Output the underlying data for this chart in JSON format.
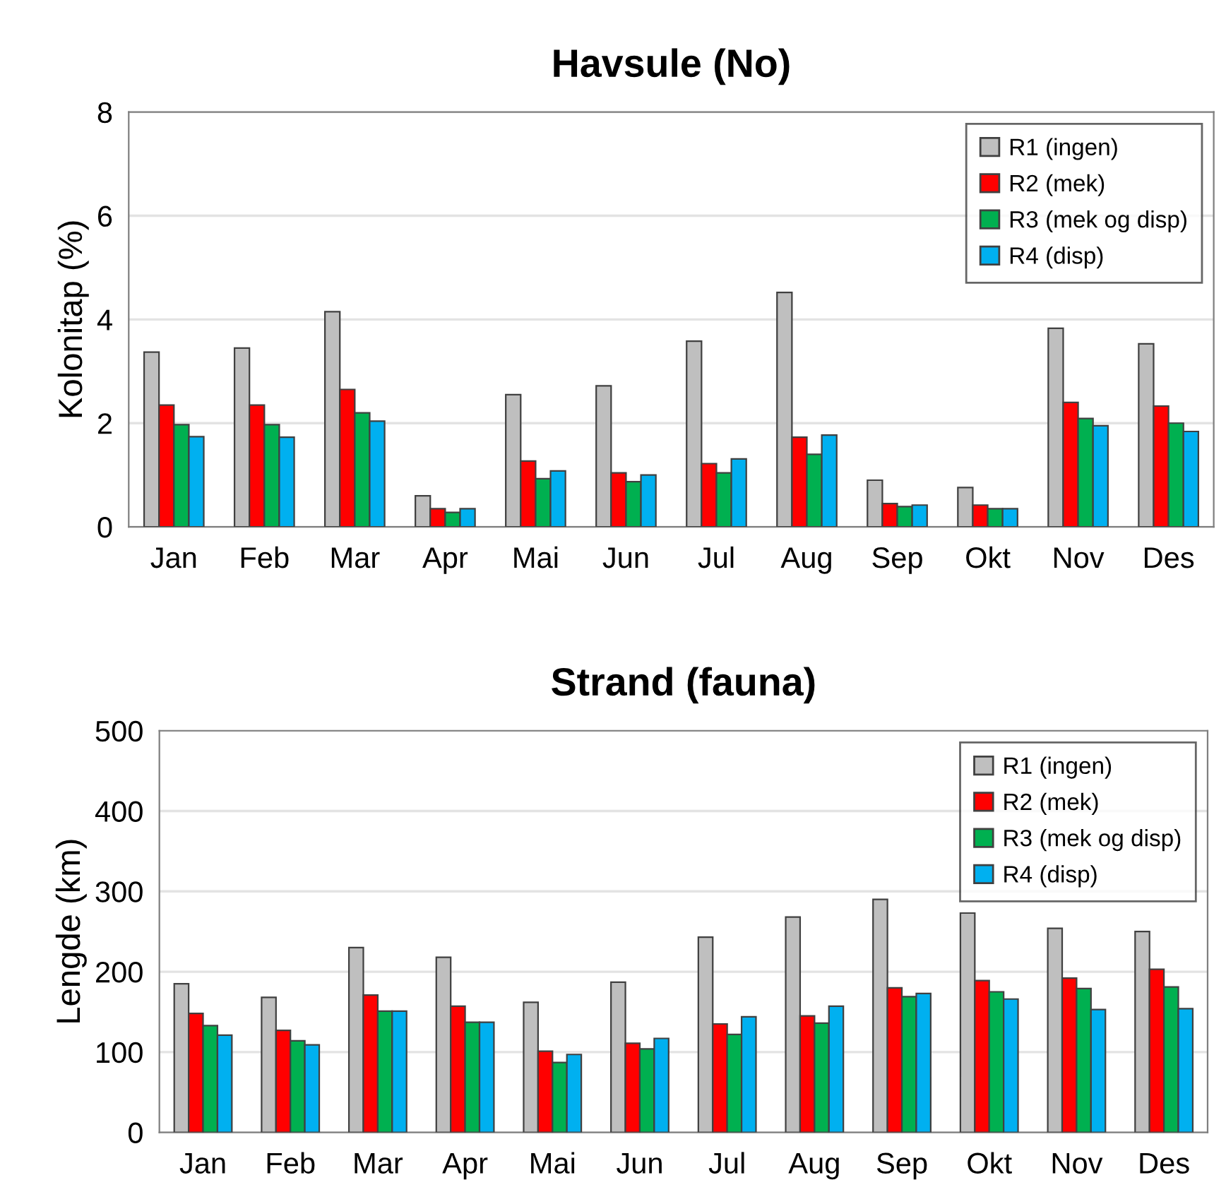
{
  "chart_data": [
    {
      "type": "bar",
      "title": "Havsule (No)",
      "ylabel": "Kolonitap (%)",
      "categories": [
        "Jan",
        "Feb",
        "Mar",
        "Apr",
        "Mai",
        "Jun",
        "Jul",
        "Aug",
        "Sep",
        "Okt",
        "Nov",
        "Des"
      ],
      "ylim": [
        0,
        8
      ],
      "yticks": [
        0,
        2,
        4,
        6,
        8
      ],
      "grid": "y",
      "legend": "top right",
      "series": [
        {
          "name": "R1 (ingen)",
          "color": "#bfbfbf",
          "values": [
            3.37,
            3.45,
            4.15,
            0.6,
            2.55,
            2.72,
            3.58,
            4.52,
            0.9,
            0.76,
            3.83,
            3.53
          ]
        },
        {
          "name": "R2 (mek)",
          "color": "#ff0000",
          "values": [
            2.35,
            2.35,
            2.65,
            0.35,
            1.27,
            1.04,
            1.22,
            1.73,
            0.45,
            0.42,
            2.4,
            2.33
          ]
        },
        {
          "name": "R3 (mek og disp)",
          "color": "#00b050",
          "values": [
            1.97,
            1.97,
            2.2,
            0.28,
            0.93,
            0.87,
            1.04,
            1.4,
            0.39,
            0.35,
            2.09,
            2.0
          ]
        },
        {
          "name": "R4 (disp)",
          "color": "#00b0f0",
          "values": [
            1.74,
            1.73,
            2.04,
            0.35,
            1.08,
            1.0,
            1.31,
            1.77,
            0.42,
            0.35,
            1.95,
            1.84
          ]
        }
      ]
    },
    {
      "type": "bar",
      "title": "Strand (fauna)",
      "ylabel": "Lengde (km)",
      "categories": [
        "Jan",
        "Feb",
        "Mar",
        "Apr",
        "Mai",
        "Jun",
        "Jul",
        "Aug",
        "Sep",
        "Okt",
        "Nov",
        "Des"
      ],
      "ylim": [
        0,
        500
      ],
      "yticks": [
        0,
        100,
        200,
        300,
        400,
        500
      ],
      "grid": "y",
      "legend": "top right",
      "series": [
        {
          "name": "R1 (ingen)",
          "color": "#bfbfbf",
          "values": [
            185,
            168,
            230,
            218,
            162,
            187,
            243,
            268,
            290,
            273,
            254,
            250
          ]
        },
        {
          "name": "R2 (mek)",
          "color": "#ff0000",
          "values": [
            148,
            127,
            171,
            157,
            101,
            111,
            135,
            145,
            180,
            189,
            192,
            203
          ]
        },
        {
          "name": "R3 (mek og disp)",
          "color": "#00b050",
          "values": [
            133,
            114,
            151,
            137,
            87,
            104,
            122,
            136,
            169,
            175,
            179,
            181
          ]
        },
        {
          "name": "R4 (disp)",
          "color": "#00b0f0",
          "values": [
            121,
            109,
            151,
            137,
            97,
            117,
            144,
            157,
            173,
            166,
            153,
            154
          ]
        }
      ]
    }
  ]
}
